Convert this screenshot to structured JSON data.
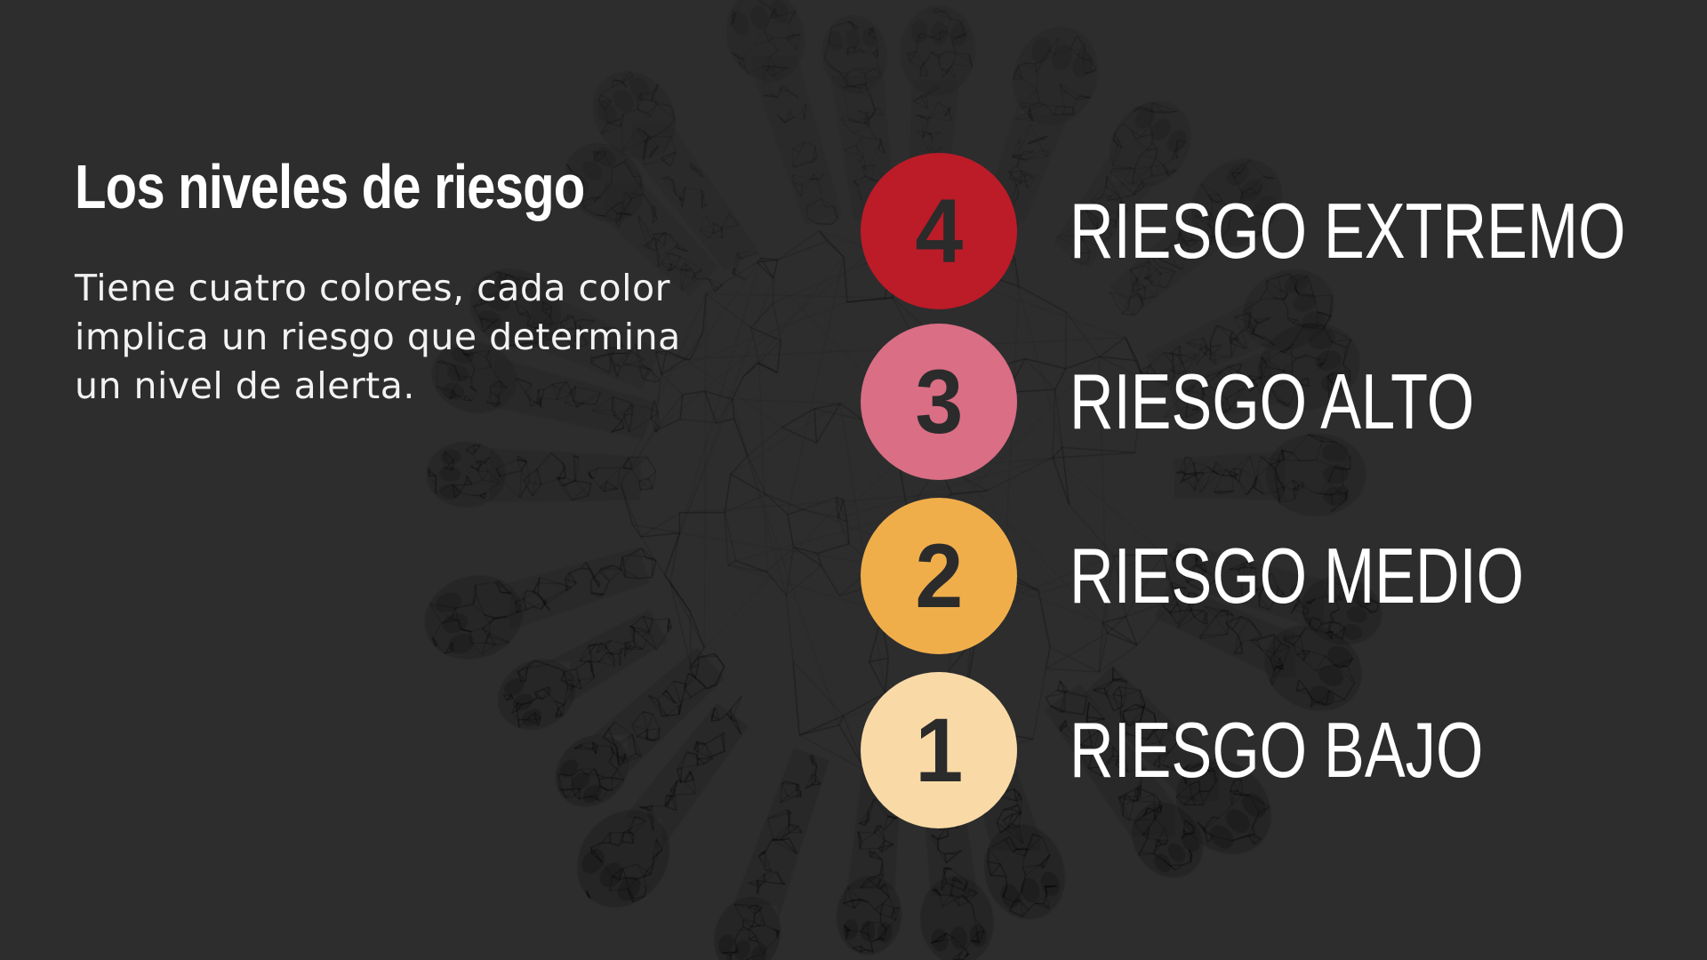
{
  "header": {
    "title": "Los niveles de riesgo",
    "description": "Tiene cuatro colores, cada color implica un riesgo que determina un nivel de alerta.",
    "description_lines": [
      "Tiene cuatro colores, cada color",
      "implica un riesgo que determina",
      "un nivel de alerta."
    ]
  },
  "levels": [
    {
      "number": "4",
      "label": "RIESGO EXTREMO",
      "color": "#bc1b28"
    },
    {
      "number": "3",
      "label": "RIESGO ALTO",
      "color": "#d96e84"
    },
    {
      "number": "2",
      "label": "RIESGO MEDIO",
      "color": "#f0ae4b"
    },
    {
      "number": "1",
      "label": "RIESGO BAJO",
      "color": "#f9daa7"
    }
  ],
  "style": {
    "background_color": "#2d2d2d",
    "text_color": "#ffffff",
    "badge_number_color": "#2b2b2b",
    "decoration": "coronavirus-wireframe-icon"
  }
}
